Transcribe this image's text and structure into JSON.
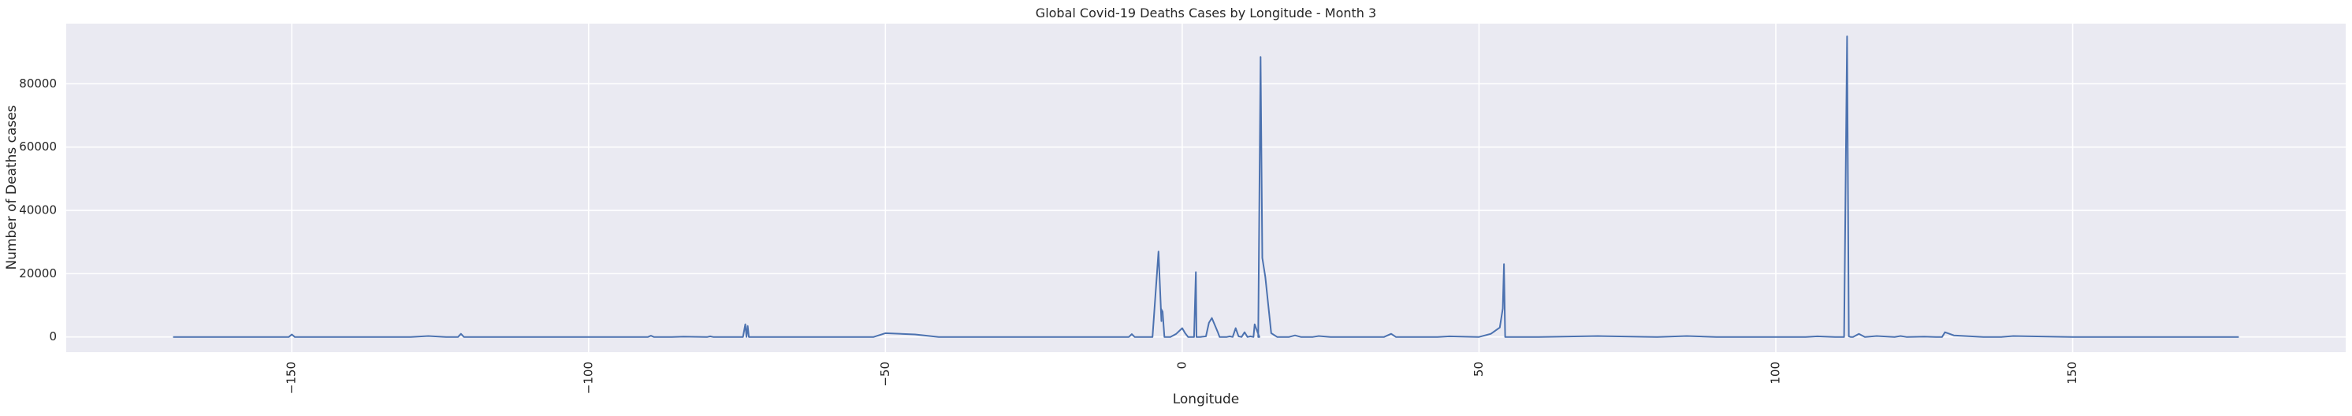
{
  "chart_data": {
    "type": "line",
    "title": "Global Covid-19 Deaths Cases by Longitude - Month 3",
    "xlabel": "Longitude",
    "ylabel": "Number of Deaths cases",
    "xlim": [
      -188,
      196
    ],
    "ylim": [
      -4800,
      99000
    ],
    "x_ticks": [
      -150,
      -100,
      -50,
      0,
      50,
      100,
      150
    ],
    "x_tick_labels": [
      "−150",
      "−100",
      "−50",
      "0",
      "50",
      "100",
      "150"
    ],
    "y_ticks": [
      0,
      20000,
      40000,
      60000,
      80000
    ],
    "y_tick_labels": [
      "0",
      "20000",
      "40000",
      "60000",
      "80000"
    ],
    "grid": true,
    "legend": "none",
    "colors": {
      "background": "#eaeaf2",
      "grid": "#ffffff",
      "line": "#4c72b0",
      "text": "#262626"
    },
    "series": [
      {
        "x": [
          -170,
          -150.5,
          -150,
          -149.5,
          -130,
          -127,
          -124,
          -122,
          -121.5,
          -121,
          -100,
          -90,
          -89.5,
          -89,
          -86,
          -84,
          -80,
          -79.5,
          -79,
          -74,
          -73.6,
          -73.4,
          -73.2,
          -73,
          -70,
          -66,
          -52,
          -50,
          -45,
          -41,
          -20,
          -9,
          -8.5,
          -8,
          -6,
          -5,
          -4,
          -3.5,
          -3.6,
          -3.3,
          -3,
          -2.5,
          -2,
          -1,
          0,
          0.5,
          1,
          1.5,
          2,
          2.3,
          2.4,
          2.6,
          3,
          4,
          4.5,
          5,
          6,
          6.3,
          7,
          7.5,
          8,
          8.5,
          9,
          9.5,
          10,
          10.5,
          11,
          11.5,
          12,
          12.2,
          12.5,
          13,
          12.8,
          13.2,
          13.5,
          14,
          15,
          16,
          18,
          19,
          20,
          22,
          23,
          25,
          28,
          30,
          34,
          35.2,
          36,
          43,
          45,
          50,
          52,
          53.5,
          54,
          54.2,
          54.4,
          55,
          60,
          70,
          80,
          85,
          90,
          100,
          105,
          107,
          110,
          111.5,
          112,
          112.3,
          112.6,
          113,
          114,
          115,
          117,
          120,
          121,
          122,
          125,
          127,
          128,
          128.5,
          130,
          135,
          138,
          140,
          150,
          155,
          160,
          170,
          178
        ],
        "y": [
          0,
          0,
          800,
          0,
          0,
          300,
          0,
          0,
          1000,
          0,
          0,
          0,
          400,
          0,
          0,
          100,
          0,
          200,
          0,
          0,
          4000,
          0,
          3500,
          0,
          0,
          0,
          0,
          1200,
          800,
          0,
          0,
          0,
          900,
          0,
          0,
          0,
          27000,
          5000,
          9000,
          8000,
          0,
          0,
          0,
          1000,
          2800,
          1200,
          0,
          0,
          0,
          20500,
          0,
          0,
          0,
          200,
          4500,
          6000,
          1500,
          0,
          0,
          0,
          200,
          0,
          2800,
          200,
          0,
          1500,
          0,
          200,
          0,
          4000,
          2500,
          0,
          0,
          88500,
          25000,
          19000,
          1200,
          0,
          0,
          500,
          0,
          0,
          300,
          0,
          0,
          0,
          0,
          1000,
          0,
          0,
          200,
          0,
          1000,
          3000,
          9000,
          23000,
          0,
          0,
          0,
          300,
          0,
          300,
          0,
          0,
          0,
          200,
          0,
          0,
          95000,
          200,
          0,
          0,
          1000,
          0,
          300,
          0,
          300,
          0,
          100,
          0,
          0,
          1500,
          500,
          0,
          0,
          300,
          0,
          0,
          0,
          0,
          0
        ]
      }
    ]
  }
}
